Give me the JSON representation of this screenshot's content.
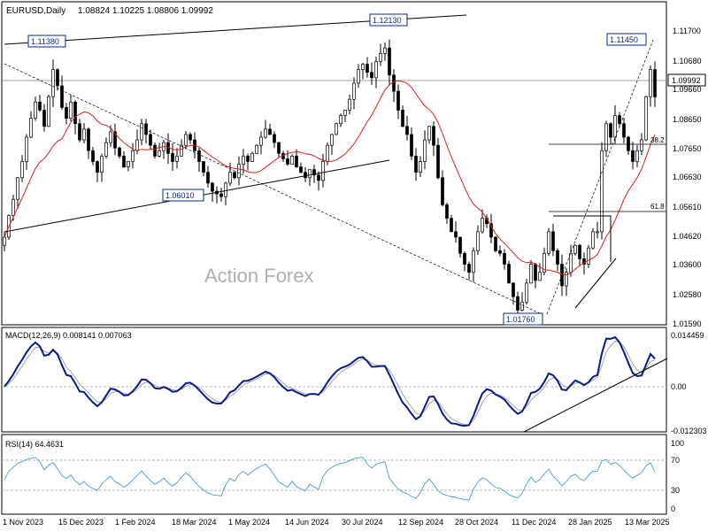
{
  "header": {
    "symbol": "EURUSD,Daily",
    "ohlc": "1.08824 1.10225 1.08806 1.09992"
  },
  "watermark": "Action Forex",
  "chart_data": [
    {
      "type": "candlestick",
      "ylim": [
        1.0159,
        1.1243
      ],
      "yticks": [
        "1.11700",
        "1.10680",
        "1.09660",
        "1.08650",
        "1.07650",
        "1.06630",
        "1.05610",
        "1.04620",
        "1.03600",
        "1.02580",
        "1.01590"
      ],
      "xticks": [
        "1 Nov 2023",
        "15 Dec 2023",
        "1 Feb 2024",
        "18 Mar 2024",
        "1 May 2024",
        "14 Jun 2024",
        "30 Jul 2024",
        "12 Sep 2024",
        "28 Oct 2024",
        "11 Dec 2024",
        "28 Jan 2025",
        "13 Mar 2025"
      ],
      "current_price": "1.09992",
      "price_labels": [
        "1.11380",
        "1.12130",
        "1.06010",
        "1.01760",
        "1.11450"
      ],
      "fib_labels": [
        "38.2",
        "61.8"
      ],
      "close": [
        1.048,
        1.056,
        1.062,
        1.07,
        1.076,
        1.085,
        1.092,
        1.098,
        1.095,
        1.089,
        1.1,
        1.11,
        1.104,
        1.096,
        1.092,
        1.098,
        1.09,
        1.084,
        1.088,
        1.08,
        1.076,
        1.072,
        1.078,
        1.083,
        1.087,
        1.081,
        1.078,
        1.074,
        1.076,
        1.08,
        1.084,
        1.09,
        1.086,
        1.082,
        1.078,
        1.08,
        1.083,
        1.079,
        1.076,
        1.078,
        1.082,
        1.086,
        1.084,
        1.08,
        1.076,
        1.072,
        1.068,
        1.065,
        1.064,
        1.063,
        1.068,
        1.072,
        1.07,
        1.075,
        1.078,
        1.076,
        1.079,
        1.082,
        1.085,
        1.088,
        1.086,
        1.083,
        1.079,
        1.077,
        1.075,
        1.078,
        1.074,
        1.072,
        1.07,
        1.073,
        1.071,
        1.069,
        1.076,
        1.082,
        1.086,
        1.09,
        1.093,
        1.095,
        1.099,
        1.105,
        1.11,
        1.112,
        1.109,
        1.107,
        1.113,
        1.116,
        1.118,
        1.108,
        1.102,
        1.095,
        1.089,
        1.086,
        1.078,
        1.072,
        1.076,
        1.084,
        1.089,
        1.082,
        1.07,
        1.06,
        1.055,
        1.05,
        1.048,
        1.042,
        1.038,
        1.035,
        1.043,
        1.05,
        1.055,
        1.053,
        1.048,
        1.043,
        1.042,
        1.038,
        1.031,
        1.026,
        1.021,
        1.024,
        1.031,
        1.038,
        1.032,
        1.035,
        1.042,
        1.05,
        1.043,
        1.038,
        1.03,
        1.035,
        1.042,
        1.045,
        1.04,
        1.038,
        1.044,
        1.05,
        1.05,
        1.08,
        1.09,
        1.085,
        1.093,
        1.09,
        1.085,
        1.08,
        1.076,
        1.08,
        1.084,
        1.1,
        1.11,
        1.0999
      ],
      "macd": {
        "label": "MACD(12,26,9) 0.008141 0.007063",
        "ylim": [
          -0.012303,
          0.014459
        ],
        "yticks": [
          "0.014459",
          "0.00",
          "-0.012303"
        ]
      },
      "rsi": {
        "label": "RSI(14) 64.4631",
        "ylim": [
          0,
          100
        ],
        "yticks": [
          "100",
          "70",
          "30",
          "0"
        ]
      }
    }
  ]
}
